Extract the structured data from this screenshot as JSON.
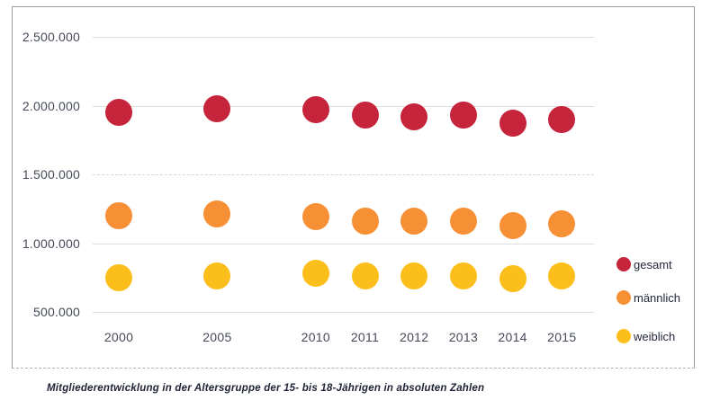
{
  "figure": {
    "caption": "Mitgliederentwicklung in der Altersgruppe der 15- bis 18-Jährigen in absoluten Zahlen"
  },
  "chart_data": {
    "type": "scatter",
    "title": "",
    "xlabel": "",
    "ylabel": "",
    "categories": [
      "2000",
      "2005",
      "2010",
      "2011",
      "2012",
      "2013",
      "2014",
      "2015"
    ],
    "x_slots": [
      0,
      2,
      4,
      5,
      6,
      7,
      8,
      9
    ],
    "series": [
      {
        "name": "gesamt",
        "color": "#C5243A",
        "values": [
          1950000,
          1980000,
          1970000,
          1930000,
          1920000,
          1930000,
          1870000,
          1900000
        ]
      },
      {
        "name": "männlich",
        "color": "#F78F35",
        "values": [
          1200000,
          1210000,
          1190000,
          1160000,
          1160000,
          1160000,
          1130000,
          1140000
        ]
      },
      {
        "name": "weiblich",
        "color": "#FCBE1A",
        "values": [
          750000,
          760000,
          780000,
          760000,
          760000,
          760000,
          740000,
          760000
        ]
      }
    ],
    "y_axis": {
      "ticks": [
        {
          "value": 2500000,
          "label": "2.500.000",
          "line": "solid"
        },
        {
          "value": 2000000,
          "label": "2.000.000",
          "line": "solid"
        },
        {
          "value": 1500000,
          "label": "1.500.000",
          "line": "dashed"
        },
        {
          "value": 1000000,
          "label": "1.000.000",
          "line": "solid"
        },
        {
          "value": 500000,
          "label": "500.000",
          "line": "solid"
        }
      ],
      "ylim": [
        500000,
        2500000
      ]
    },
    "grid": true,
    "legend_position": "right"
  }
}
